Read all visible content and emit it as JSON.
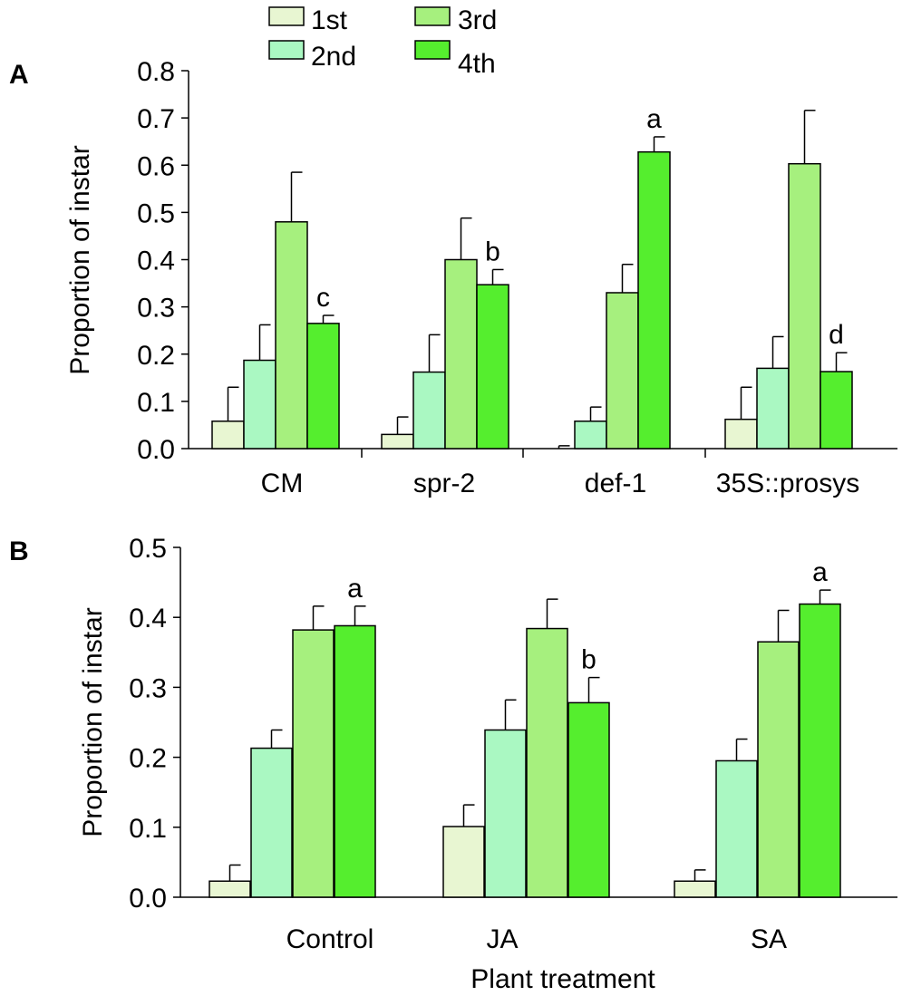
{
  "legend": {
    "items": [
      {
        "label": "1st",
        "color": "#e8f6d2"
      },
      {
        "label": "2nd",
        "color": "#aaf8c2"
      },
      {
        "label": "3rd",
        "color": "#a6f07e"
      },
      {
        "label": "4th",
        "color": "#55ee2e"
      }
    ]
  },
  "chart_data": [
    {
      "type": "bar",
      "panel_label": "A",
      "title": "",
      "xlabel": "",
      "ylabel": "Proportion of instar",
      "ylim": [
        0,
        0.8
      ],
      "yticks": [
        "0.0",
        "0.1",
        "0.2",
        "0.3",
        "0.4",
        "0.5",
        "0.6",
        "0.7",
        "0.8"
      ],
      "categories": [
        "CM",
        "spr-2",
        "def-1",
        "35S::prosys"
      ],
      "series": [
        {
          "name": "1st",
          "color": "#e8f6d2",
          "values": [
            0.058,
            0.03,
            0.0,
            0.062
          ],
          "errors": [
            0.072,
            0.037,
            0.006,
            0.068
          ]
        },
        {
          "name": "2nd",
          "color": "#aaf8c2",
          "values": [
            0.187,
            0.162,
            0.058,
            0.17
          ],
          "errors": [
            0.075,
            0.079,
            0.03,
            0.067
          ]
        },
        {
          "name": "3rd",
          "color": "#a6f07e",
          "values": [
            0.48,
            0.4,
            0.33,
            0.603
          ],
          "errors": [
            0.105,
            0.088,
            0.06,
            0.113
          ]
        },
        {
          "name": "4th",
          "color": "#55ee2e",
          "values": [
            0.265,
            0.347,
            0.628,
            0.163
          ],
          "errors": [
            0.017,
            0.032,
            0.032,
            0.04
          ]
        }
      ],
      "annotations": [
        {
          "series": "4th",
          "category": "CM",
          "text": "c"
        },
        {
          "series": "4th",
          "category": "spr-2",
          "text": "b"
        },
        {
          "series": "4th",
          "category": "def-1",
          "text": "a"
        },
        {
          "series": "4th",
          "category": "35S::prosys",
          "text": "d"
        }
      ]
    },
    {
      "type": "bar",
      "panel_label": "B",
      "title": "",
      "xlabel": "Plant treatment",
      "ylabel": "Proportion of instar",
      "ylim": [
        0,
        0.5
      ],
      "yticks": [
        "0.0",
        "0.1",
        "0.2",
        "0.3",
        "0.4",
        "0.5"
      ],
      "categories": [
        "Control",
        "JA",
        "SA"
      ],
      "series": [
        {
          "name": "1st",
          "color": "#e8f6d2",
          "values": [
            0.023,
            0.101,
            0.023
          ],
          "errors": [
            0.023,
            0.031,
            0.016
          ]
        },
        {
          "name": "2nd",
          "color": "#aaf8c2",
          "values": [
            0.213,
            0.239,
            0.195
          ],
          "errors": [
            0.026,
            0.043,
            0.031
          ]
        },
        {
          "name": "3rd",
          "color": "#a6f07e",
          "values": [
            0.382,
            0.384,
            0.365
          ],
          "errors": [
            0.034,
            0.042,
            0.045
          ]
        },
        {
          "name": "4th",
          "color": "#55ee2e",
          "values": [
            0.388,
            0.278,
            0.419
          ],
          "errors": [
            0.028,
            0.036,
            0.02
          ]
        }
      ],
      "annotations": [
        {
          "series": "4th",
          "category": "Control",
          "text": "a"
        },
        {
          "series": "4th",
          "category": "JA",
          "text": "b"
        },
        {
          "series": "4th",
          "category": "SA",
          "text": "a"
        }
      ]
    }
  ]
}
